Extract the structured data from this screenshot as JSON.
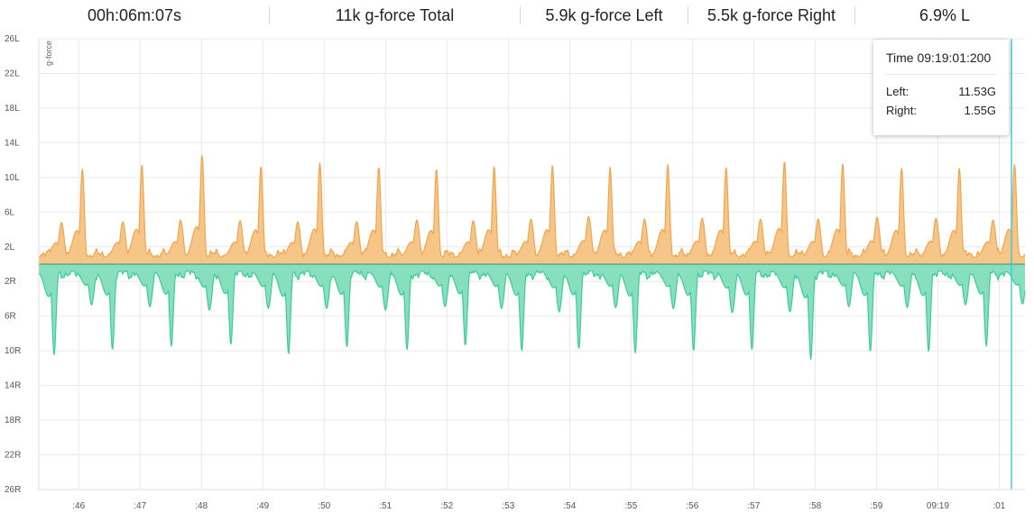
{
  "stats": {
    "duration": "00h:06m:07s",
    "total": "11k g-force Total",
    "left": "5.9k g-force Left",
    "right": "5.5k g-force Right",
    "ratio": "6.9% L"
  },
  "tooltip": {
    "time": "Time 09:19:01:200",
    "left_label": "Left:",
    "left_value": "11.53G",
    "right_label": "Right:",
    "right_value": "1.55G"
  },
  "colors": {
    "left_fill": "#f5c07e",
    "left_line": "#efa54e",
    "right_fill": "#7ddcb9",
    "right_line": "#3dcb9b",
    "grid": "#e9e9e9",
    "cursor": "#3cc8d8"
  },
  "chart_data": {
    "type": "area",
    "ylabel": "g-force",
    "y_ticks": [
      "26L",
      "22L",
      "18L",
      "14L",
      "10L",
      "6L",
      "2L",
      "2R",
      "6R",
      "10R",
      "14R",
      "18R",
      "22R",
      "26R"
    ],
    "y_tick_values": [
      26,
      22,
      18,
      14,
      10,
      6,
      2,
      -2,
      -6,
      -10,
      -14,
      -18,
      -22,
      -26
    ],
    "ylim": [
      -26,
      26
    ],
    "x_ticks": [
      ":46",
      ":47",
      ":48",
      ":49",
      ":50",
      ":51",
      ":52",
      ":53",
      ":54",
      ":55",
      ":56",
      ":57",
      ":58",
      ":59",
      "09:19",
      ":01"
    ],
    "x_tick_seconds": [
      46,
      47,
      48,
      49,
      50,
      51,
      52,
      53,
      54,
      55,
      56,
      57,
      58,
      59,
      60,
      61
    ],
    "x_range_seconds": [
      45.35,
      61.42
    ],
    "cursor_seconds": 61.2,
    "series": [
      {
        "name": "Left",
        "side": "up",
        "peaks": [
          {
            "t": 45.72,
            "g": 4.8
          },
          {
            "t": 46.06,
            "g": 11.0
          },
          {
            "t": 46.72,
            "g": 4.9
          },
          {
            "t": 47.03,
            "g": 11.5
          },
          {
            "t": 47.66,
            "g": 5.1
          },
          {
            "t": 48.01,
            "g": 12.6
          },
          {
            "t": 48.63,
            "g": 5.0
          },
          {
            "t": 48.97,
            "g": 11.3
          },
          {
            "t": 49.57,
            "g": 4.9
          },
          {
            "t": 49.93,
            "g": 11.7
          },
          {
            "t": 50.53,
            "g": 4.9
          },
          {
            "t": 50.89,
            "g": 11.2
          },
          {
            "t": 51.51,
            "g": 5.1
          },
          {
            "t": 51.83,
            "g": 11.0
          },
          {
            "t": 52.43,
            "g": 5.0
          },
          {
            "t": 52.77,
            "g": 11.3
          },
          {
            "t": 53.37,
            "g": 5.2
          },
          {
            "t": 53.72,
            "g": 11.4
          },
          {
            "t": 54.31,
            "g": 5.5
          },
          {
            "t": 54.66,
            "g": 11.2
          },
          {
            "t": 55.22,
            "g": 5.2
          },
          {
            "t": 55.6,
            "g": 11.5
          },
          {
            "t": 56.16,
            "g": 5.3
          },
          {
            "t": 56.55,
            "g": 11.2
          },
          {
            "t": 57.11,
            "g": 5.2
          },
          {
            "t": 57.5,
            "g": 11.9
          },
          {
            "t": 58.05,
            "g": 5.2
          },
          {
            "t": 58.45,
            "g": 11.6
          },
          {
            "t": 59.01,
            "g": 5.4
          },
          {
            "t": 59.41,
            "g": 11.1
          },
          {
            "t": 59.97,
            "g": 5.3
          },
          {
            "t": 60.35,
            "g": 11.1
          },
          {
            "t": 60.9,
            "g": 5.1
          },
          {
            "t": 61.25,
            "g": 11.53
          }
        ]
      },
      {
        "name": "Right",
        "side": "down",
        "peaks": [
          {
            "t": 45.6,
            "g": 10.5
          },
          {
            "t": 46.21,
            "g": 4.7
          },
          {
            "t": 46.55,
            "g": 9.9
          },
          {
            "t": 47.16,
            "g": 4.9
          },
          {
            "t": 47.51,
            "g": 9.5
          },
          {
            "t": 48.13,
            "g": 5.3
          },
          {
            "t": 48.48,
            "g": 9.3
          },
          {
            "t": 49.09,
            "g": 5.1
          },
          {
            "t": 49.42,
            "g": 10.4
          },
          {
            "t": 50.04,
            "g": 5.1
          },
          {
            "t": 50.37,
            "g": 9.6
          },
          {
            "t": 51.0,
            "g": 5.3
          },
          {
            "t": 51.35,
            "g": 9.9
          },
          {
            "t": 51.97,
            "g": 4.9
          },
          {
            "t": 52.3,
            "g": 9.4
          },
          {
            "t": 52.89,
            "g": 5.1
          },
          {
            "t": 53.22,
            "g": 10.0
          },
          {
            "t": 53.83,
            "g": 5.5
          },
          {
            "t": 54.15,
            "g": 9.8
          },
          {
            "t": 54.75,
            "g": 5.0
          },
          {
            "t": 55.07,
            "g": 10.3
          },
          {
            "t": 55.69,
            "g": 5.1
          },
          {
            "t": 56.02,
            "g": 10.0
          },
          {
            "t": 56.65,
            "g": 5.6
          },
          {
            "t": 56.97,
            "g": 9.9
          },
          {
            "t": 57.59,
            "g": 5.5
          },
          {
            "t": 57.93,
            "g": 11.0
          },
          {
            "t": 58.55,
            "g": 4.9
          },
          {
            "t": 58.9,
            "g": 10.1
          },
          {
            "t": 59.5,
            "g": 5.0
          },
          {
            "t": 59.85,
            "g": 10.1
          },
          {
            "t": 60.45,
            "g": 4.7
          },
          {
            "t": 60.79,
            "g": 9.5
          },
          {
            "t": 61.38,
            "g": 4.6
          }
        ]
      }
    ],
    "grid": true,
    "legend": "none"
  }
}
